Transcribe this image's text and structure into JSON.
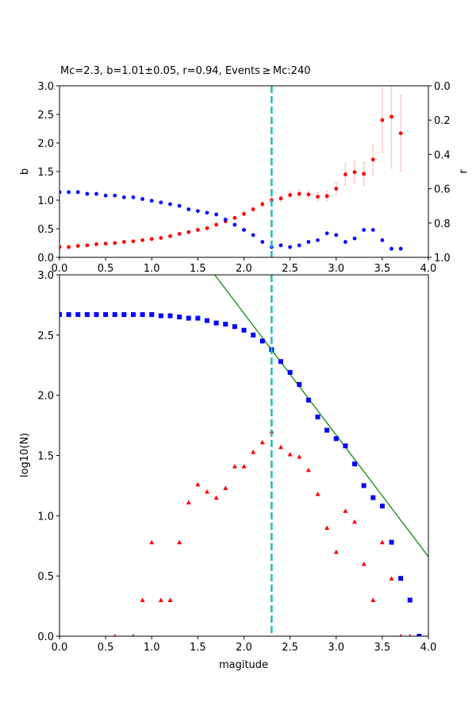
{
  "chart_data": [
    {
      "type": "scatter",
      "title": "Mc=2.3, b=1.01±0.05, r=0.94, Events ≥ Mc:240",
      "xlabel": "",
      "ylabel": "b",
      "ylabel_right": "r",
      "xlim": [
        0,
        4
      ],
      "ylim": [
        0,
        3
      ],
      "ylim_right": [
        1,
        0
      ],
      "x_ticks": [
        "0.0",
        "0.5",
        "1.0",
        "1.5",
        "2.0",
        "2.5",
        "3.0",
        "3.5",
        "4.0"
      ],
      "y_ticks": [
        "0.0",
        "0.5",
        "1.0",
        "1.5",
        "2.0",
        "2.5",
        "3.0"
      ],
      "y_ticks_right": [
        "0.0",
        "0.2",
        "0.4",
        "0.6",
        "0.8",
        "1.0"
      ],
      "mc_line": 2.3,
      "colors": {
        "b": "#ff0000",
        "r": "#0000ff",
        "b_err": "#ffc0c0",
        "mc": "#17bfbf"
      },
      "x": [
        0.0,
        0.1,
        0.2,
        0.3,
        0.4,
        0.5,
        0.6,
        0.7,
        0.8,
        0.9,
        1.0,
        1.1,
        1.2,
        1.3,
        1.4,
        1.5,
        1.6,
        1.7,
        1.8,
        1.9,
        2.0,
        2.1,
        2.2,
        2.3,
        2.4,
        2.5,
        2.6,
        2.7,
        2.8,
        2.9,
        3.0,
        3.1,
        3.2,
        3.3,
        3.4,
        3.5,
        3.6,
        3.7
      ],
      "series": [
        {
          "axis": "left",
          "values": [
            0.18,
            0.18,
            0.2,
            0.21,
            0.23,
            0.24,
            0.25,
            0.27,
            0.28,
            0.3,
            0.32,
            0.34,
            0.37,
            0.41,
            0.44,
            0.48,
            0.51,
            0.57,
            0.63,
            0.69,
            0.76,
            0.84,
            0.93,
            1.0,
            1.03,
            1.09,
            1.11,
            1.1,
            1.06,
            1.07,
            1.2,
            1.45,
            1.49,
            1.46,
            1.71,
            2.4,
            2.46,
            2.17
          ],
          "errors": [
            0.01,
            0.01,
            0.01,
            0.01,
            0.01,
            0.01,
            0.01,
            0.01,
            0.01,
            0.01,
            0.01,
            0.01,
            0.01,
            0.01,
            0.01,
            0.02,
            0.02,
            0.02,
            0.02,
            0.02,
            0.03,
            0.03,
            0.04,
            0.05,
            0.05,
            0.06,
            0.07,
            0.07,
            0.07,
            0.08,
            0.1,
            0.18,
            0.2,
            0.2,
            0.27,
            0.56,
            0.9,
            0.66
          ]
        },
        {
          "axis": "right",
          "values": [
            0.62,
            0.62,
            0.62,
            0.63,
            0.63,
            0.64,
            0.64,
            0.65,
            0.65,
            0.66,
            0.67,
            0.68,
            0.69,
            0.7,
            0.72,
            0.73,
            0.74,
            0.75,
            0.78,
            0.81,
            0.84,
            0.87,
            0.91,
            0.94,
            0.93,
            0.94,
            0.93,
            0.91,
            0.9,
            0.86,
            0.87,
            0.91,
            0.89,
            0.84,
            0.84,
            0.9,
            0.95,
            0.95
          ]
        }
      ]
    },
    {
      "type": "scatter",
      "xlabel": "magitude",
      "ylabel": "log10(N)",
      "xlim": [
        0,
        4
      ],
      "ylim": [
        0,
        3
      ],
      "x_ticks": [
        "0.0",
        "0.5",
        "1.0",
        "1.5",
        "2.0",
        "2.5",
        "3.0",
        "3.5",
        "4.0"
      ],
      "y_ticks": [
        "0.0",
        "0.5",
        "1.0",
        "1.5",
        "2.0",
        "2.5",
        "3.0"
      ],
      "mc_line": 2.3,
      "fit_line": {
        "a": 4.7,
        "b": 1.01,
        "color": "#008000"
      },
      "colors": {
        "cumulative": "#0000ff",
        "noncumulative": "#ff0000",
        "mc": "#17bfbf"
      },
      "series": [
        {
          "marker": "square",
          "x": [
            0.0,
            0.1,
            0.2,
            0.3,
            0.4,
            0.5,
            0.6,
            0.7,
            0.8,
            0.9,
            1.0,
            1.1,
            1.2,
            1.3,
            1.4,
            1.5,
            1.6,
            1.7,
            1.8,
            1.9,
            2.0,
            2.1,
            2.2,
            2.3,
            2.4,
            2.5,
            2.6,
            2.7,
            2.8,
            2.9,
            3.0,
            3.1,
            3.2,
            3.3,
            3.4,
            3.5,
            3.6,
            3.7,
            3.8,
            3.9
          ],
          "values": [
            2.67,
            2.67,
            2.67,
            2.67,
            2.67,
            2.67,
            2.67,
            2.67,
            2.67,
            2.67,
            2.67,
            2.66,
            2.66,
            2.65,
            2.64,
            2.64,
            2.62,
            2.6,
            2.59,
            2.57,
            2.54,
            2.5,
            2.45,
            2.38,
            2.28,
            2.19,
            2.09,
            1.96,
            1.82,
            1.71,
            1.64,
            1.58,
            1.43,
            1.25,
            1.15,
            1.08,
            0.78,
            0.48,
            0.3,
            0.0
          ]
        },
        {
          "marker": "triangle",
          "x": [
            0.6,
            0.8,
            0.9,
            1.0,
            1.1,
            1.2,
            1.3,
            1.4,
            1.5,
            1.6,
            1.7,
            1.8,
            1.9,
            2.0,
            2.1,
            2.2,
            2.3,
            2.4,
            2.5,
            2.6,
            2.7,
            2.8,
            2.9,
            3.0,
            3.1,
            3.2,
            3.3,
            3.4,
            3.5,
            3.6,
            3.7,
            3.8
          ],
          "values": [
            0,
            0,
            0.3,
            0.78,
            0.3,
            0.3,
            0.78,
            1.11,
            1.26,
            1.2,
            1.15,
            1.23,
            1.41,
            1.41,
            1.53,
            1.61,
            1.7,
            1.57,
            1.51,
            1.49,
            1.38,
            1.18,
            0.9,
            0.7,
            1.04,
            0.95,
            0.6,
            0.3,
            0.78,
            0.48,
            0,
            0
          ]
        }
      ]
    }
  ]
}
